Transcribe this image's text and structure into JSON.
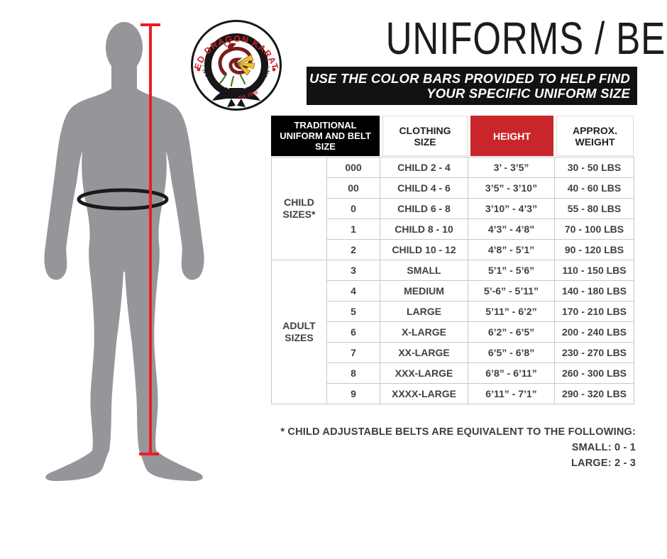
{
  "page": {
    "background": "#ffffff"
  },
  "logo": {
    "top_text": "RED DRAGON KARATE",
    "bottom_text": "· NOBODY DOES IT BETTER ·",
    "belt_text": "Est. 1965",
    "ring_color": "#161616",
    "brand_red": "#d42027"
  },
  "header": {
    "title": "UNIFORMS / BELTS",
    "banner_line1": "USE THE COLOR BARS PROVIDED TO HELP FIND",
    "banner_line2": "YOUR SPECIFIC UNIFORM SIZE",
    "banner_bg": "#121212",
    "banner_text_color": "#ffffff"
  },
  "size_table": {
    "columns": [
      "TRADITIONAL UNIFORM AND BELT SIZE",
      "CLOTHING SIZE",
      "HEIGHT",
      "APPROX. WEIGHT"
    ],
    "height_header_bg": "#c9262b",
    "uniform_header_bg": "#000000",
    "groups": [
      {
        "label": "CHILD SIZES*",
        "rows": [
          [
            "000",
            "CHILD 2 - 4",
            "3’ - 3’5”",
            "30 - 50 LBS"
          ],
          [
            "00",
            "CHILD 4 - 6",
            "3’5” - 3’10”",
            "40 - 60 LBS"
          ],
          [
            "0",
            "CHILD 6 - 8",
            "3’10” - 4’3”",
            "55 - 80 LBS"
          ],
          [
            "1",
            "CHILD 8 - 10",
            "4’3” - 4’8”",
            "70 - 100 LBS"
          ],
          [
            "2",
            "CHILD 10 - 12",
            "4’8” - 5’1”",
            "90 - 120 LBS"
          ]
        ]
      },
      {
        "label": "ADULT SIZES",
        "rows": [
          [
            "3",
            "SMALL",
            "5’1” - 5’6”",
            "110 - 150 LBS"
          ],
          [
            "4",
            "MEDIUM",
            "5’-6” - 5’11”",
            "140 - 180 LBS"
          ],
          [
            "5",
            "LARGE",
            "5’11” - 6’2”",
            "170 - 210 LBS"
          ],
          [
            "6",
            "X-LARGE",
            "6’2” - 6’5”",
            "200 - 240 LBS"
          ],
          [
            "7",
            "XX-LARGE",
            "6’5” - 6’8”",
            "230 - 270 LBS"
          ],
          [
            "8",
            "XXX-LARGE",
            "6’8” - 6’11”",
            "260 - 300 LBS"
          ],
          [
            "9",
            "XXXX-LARGE",
            "6’11” - 7’1”",
            "290 - 320 LBS"
          ]
        ]
      }
    ]
  },
  "footnote": {
    "line1": "* CHILD ADJUSTABLE BELTS ARE EQUIVALENT TO THE FOLLOWING:",
    "line2": "SMALL: 0 - 1",
    "line3": "LARGE: 2 - 3"
  },
  "figure": {
    "silhouette_color": "#959699",
    "measure_line_color": "#ed1c24",
    "belt_color": "#1a1a1a"
  }
}
